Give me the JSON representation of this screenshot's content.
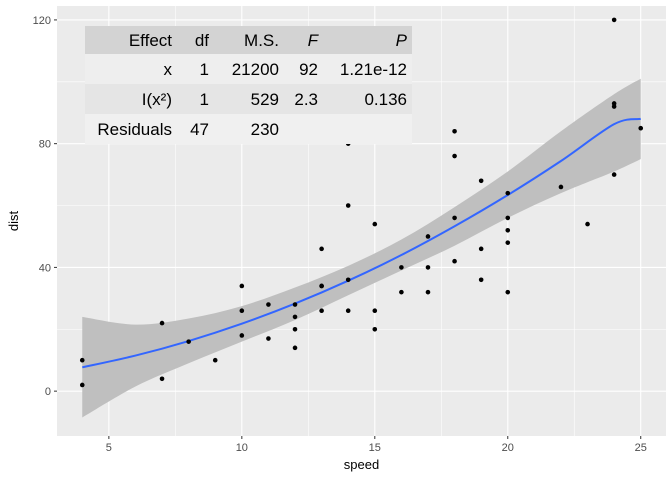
{
  "chart_data": {
    "type": "scatter",
    "xlabel": "speed",
    "ylabel": "dist",
    "xlim": [
      3.05,
      25.95
    ],
    "ylim": [
      -14.5,
      124.5
    ],
    "x_ticks": [
      5,
      10,
      15,
      20,
      25
    ],
    "y_ticks": [
      0,
      40,
      80,
      120
    ],
    "grid": true,
    "colors": {
      "panel": "#ebebeb",
      "grid": "#ffffff",
      "points": "#000000",
      "smooth_line": "#3366ff",
      "ribbon": "#bfbfbf",
      "table_header": "#d3d3d3",
      "table_row_even": "#eeeeee",
      "table_row_odd": "#e5e5e5",
      "table_row_last": "#f0f0f0"
    },
    "points": [
      [
        4,
        2
      ],
      [
        4,
        10
      ],
      [
        7,
        4
      ],
      [
        7,
        22
      ],
      [
        8,
        16
      ],
      [
        9,
        10
      ],
      [
        10,
        18
      ],
      [
        10,
        26
      ],
      [
        10,
        34
      ],
      [
        11,
        17
      ],
      [
        11,
        28
      ],
      [
        12,
        14
      ],
      [
        12,
        20
      ],
      [
        12,
        24
      ],
      [
        12,
        28
      ],
      [
        13,
        26
      ],
      [
        13,
        34
      ],
      [
        13,
        34
      ],
      [
        13,
        46
      ],
      [
        14,
        26
      ],
      [
        14,
        36
      ],
      [
        14,
        60
      ],
      [
        14,
        80
      ],
      [
        15,
        20
      ],
      [
        15,
        26
      ],
      [
        15,
        54
      ],
      [
        16,
        32
      ],
      [
        16,
        40
      ],
      [
        17,
        32
      ],
      [
        17,
        40
      ],
      [
        17,
        50
      ],
      [
        18,
        42
      ],
      [
        18,
        56
      ],
      [
        18,
        76
      ],
      [
        18,
        84
      ],
      [
        19,
        36
      ],
      [
        19,
        46
      ],
      [
        19,
        68
      ],
      [
        20,
        32
      ],
      [
        20,
        48
      ],
      [
        20,
        52
      ],
      [
        20,
        56
      ],
      [
        20,
        64
      ],
      [
        22,
        66
      ],
      [
        23,
        54
      ],
      [
        24,
        70
      ],
      [
        24,
        92
      ],
      [
        24,
        93
      ],
      [
        24,
        120
      ],
      [
        25,
        85
      ]
    ],
    "smooth": {
      "x": [
        4,
        6,
        8,
        10,
        12,
        14,
        16,
        18,
        20,
        22,
        24,
        25
      ],
      "y": [
        7.7,
        11.5,
        16.2,
        21.8,
        28.3,
        35.7,
        44.0,
        53.3,
        63.4,
        74.4,
        86.3,
        88.0
      ],
      "lower": [
        -8.5,
        1.5,
        9.0,
        16.0,
        23.0,
        31.0,
        39.0,
        47.0,
        56.0,
        64.0,
        71.0,
        75.0
      ],
      "upper": [
        24.0,
        21.5,
        23.5,
        27.5,
        33.5,
        40.5,
        49.0,
        59.5,
        71.0,
        84.0,
        96.0,
        101.0
      ]
    },
    "anova_table": {
      "headers": [
        "Effect",
        "df",
        "M.S.",
        "F",
        "P"
      ],
      "rows": [
        [
          "x",
          "1",
          "21200",
          "92",
          "1.21e-12"
        ],
        [
          "I(x²)",
          "1",
          "529",
          "2.3",
          "0.136"
        ],
        [
          "Residuals",
          "47",
          "230",
          "",
          ""
        ]
      ]
    }
  }
}
